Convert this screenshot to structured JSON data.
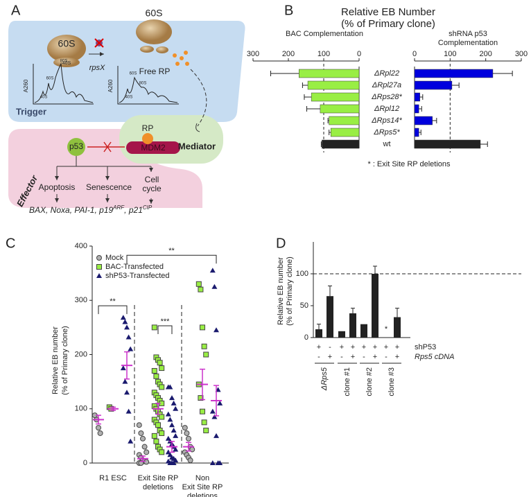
{
  "panel_labels": [
    "A",
    "B",
    "C",
    "D"
  ],
  "diagram": {
    "trigger": "Trigger",
    "mediator": "Mediator",
    "effector": "Effector",
    "ribosome_60s": "60S",
    "ribosome_40s": "40S",
    "rps": "rpsX",
    "ribosome_60s_b": "60S",
    "free_rp": "Free RP",
    "profile_1": [
      "A260",
      "40S",
      "60S",
      "80S"
    ],
    "profile_2": [
      "A260",
      "40S",
      "60S",
      "80S"
    ],
    "rp": "RP",
    "mdm2": "MDM2",
    "p53": "p53",
    "outcomes": [
      "Apoptosis",
      "Senescence",
      "Cell cycle"
    ],
    "genes": [
      "BAX, Noxa, PAI-1, p19",
      "ARF",
      ", p21",
      "CIP"
    ]
  },
  "chart_data": [
    {
      "type": "bar",
      "orientation": "horizontal",
      "title": [
        "Relative EB Number",
        "(% of Primary clone)"
      ],
      "categories": [
        "ΔRpl22",
        "ΔRpl27a",
        "ΔRps28*",
        "ΔRpl12",
        "ΔRps14*",
        "ΔRps5*",
        "wt"
      ],
      "reference_line": 100,
      "footnote": "* : Exit Site RP deletions",
      "series": [
        {
          "name": "BAC Complementation",
          "colors": [
            "#99ee44",
            "#99ee44",
            "#99ee44",
            "#99ee44",
            "#99ee44",
            "#99ee44",
            "#222222"
          ],
          "values": [
            170,
            145,
            135,
            110,
            85,
            80,
            105
          ],
          "errors": [
            80,
            15,
            20,
            38,
            3,
            5,
            2
          ],
          "xlim": [
            300,
            0
          ],
          "xticks": [
            300,
            200,
            100,
            0
          ]
        },
        {
          "name": "shRNA p53 Complementation",
          "colors": [
            "#0000dd",
            "#0000dd",
            "#0000dd",
            "#0000dd",
            "#0000dd",
            "#0000dd",
            "#222222"
          ],
          "values": [
            220,
            105,
            15,
            12,
            50,
            12,
            185
          ],
          "errors": [
            55,
            20,
            8,
            8,
            12,
            6,
            20
          ],
          "xlim": [
            0,
            300
          ],
          "xticks": [
            0,
            100,
            200,
            300
          ]
        }
      ]
    },
    {
      "type": "scatter",
      "ylabel": [
        "Relative EB number",
        "(% of Primary clone)"
      ],
      "ylim": [
        0,
        400
      ],
      "yticks": [
        0,
        100,
        200,
        300,
        400
      ],
      "categories": [
        [
          "R1 ESC"
        ],
        [
          "Exit Site RP",
          "deletions"
        ],
        [
          "Non",
          "Exit Site RP",
          "deletions"
        ]
      ],
      "mean_color": "#cc33cc",
      "series": [
        {
          "name": "Mock",
          "color": "#b0b0b0",
          "marker": "circle",
          "values": [
            [
              88,
              80,
              65,
              55
            ],
            [
              70,
              55,
              45,
              30,
              20,
              15,
              10,
              5,
              3,
              2,
              0,
              0
            ],
            [
              65,
              55,
              45,
              30,
              25,
              20,
              15,
              10,
              5
            ]
          ],
          "mean": [
            80,
            8,
            30
          ],
          "sem": [
            8,
            5,
            8
          ]
        },
        {
          "name": "BAC-Transfected",
          "color": "#99ee44",
          "marker": "square",
          "values": [
            [
              103,
              100
            ],
            [
              250,
              195,
              190,
              185,
              175,
              170,
              160,
              150,
              145,
              140,
              130,
              125,
              120,
              115,
              110,
              105,
              100,
              95,
              90,
              85,
              80,
              75,
              70,
              60,
              55,
              50,
              40,
              30,
              25,
              20
            ],
            [
              330,
              320,
              250,
              215,
              200,
              145,
              120,
              95,
              75,
              60
            ]
          ],
          "mean": [
            100,
            100,
            145
          ],
          "sem": [
            3,
            10,
            28
          ]
        },
        {
          "name": "shP53-Transfected",
          "color": "#1a1a6e",
          "marker": "triangle",
          "values": [
            [
              268,
              260,
              250,
              232,
              210,
              175,
              150,
              130,
              95,
              40
            ],
            [
              140,
              140,
              120,
              110,
              100,
              90,
              80,
              70,
              60,
              50,
              45,
              40,
              35,
              30,
              25,
              20,
              15,
              10,
              8,
              5,
              3,
              0,
              0,
              0
            ],
            [
              355,
              325,
              245,
              135,
              110,
              95,
              85,
              50,
              0,
              0,
              0
            ]
          ],
          "mean": [
            180,
            30,
            115
          ],
          "sem": [
            25,
            10,
            28
          ]
        }
      ],
      "annotations": [
        {
          "text": "**",
          "y": 290,
          "from": [
            0,
            0
          ],
          "to": [
            0,
            2
          ]
        },
        {
          "text": "***",
          "y": 253,
          "from": [
            1,
            1
          ],
          "to": [
            1,
            2
          ]
        },
        {
          "text": "**",
          "y": 383,
          "from": [
            0,
            2
          ],
          "to": [
            2,
            2
          ]
        }
      ]
    },
    {
      "type": "bar",
      "ylabel": [
        "Relative EB number",
        "(% of Primary clone)"
      ],
      "ylim": [
        0,
        150
      ],
      "yticks": [
        0,
        50,
        100
      ],
      "reference_line": 100,
      "color": "#222222",
      "values": [
        13,
        65,
        10,
        38,
        21,
        100,
        null,
        32
      ],
      "errors": [
        8,
        16,
        null,
        8,
        null,
        12,
        null,
        14
      ],
      "annotations": [
        {
          "text": "*",
          "bar": 6
        }
      ],
      "groups": [
        "ΔRps5",
        "clone #1",
        "clone #2",
        "clone #3"
      ],
      "rows": [
        {
          "name": "shP53",
          "signs": [
            "+",
            "-",
            "+",
            "+",
            "+",
            "+",
            "+",
            "+"
          ]
        },
        {
          "name": "Rps5 cDNA",
          "signs": [
            "-",
            "+",
            "-",
            "+",
            "-",
            "+",
            "-",
            "+"
          ]
        }
      ]
    }
  ]
}
